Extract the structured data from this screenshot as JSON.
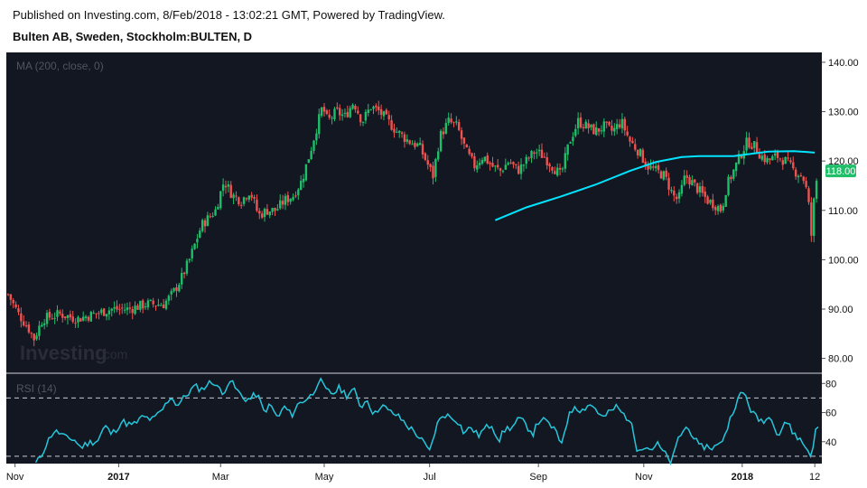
{
  "header": {
    "published": "Published on Investing.com, 8/Feb/2018 - 13:02:21 GMT, Powered by TradingView.",
    "title": "Bulten AB, Sweden, Stockholm:BULTEN, D"
  },
  "watermark": {
    "brand": "Investing",
    "suffix": ".com"
  },
  "colors": {
    "background": "#131722",
    "up": "#26a69a",
    "up_candle": "#1fbf6a",
    "down_candle": "#ef5350",
    "ma": "#00e5ff",
    "rsi": "#26c6da",
    "price_tag": "#1fbf6a"
  },
  "chart_data": [
    {
      "type": "candlestick",
      "title": "",
      "study_label": "MA (200, close, 0)",
      "ylim": [
        77,
        142
      ],
      "y_ticks": [
        "140.00",
        "130.00",
        "120.00",
        "110.00",
        "100.00",
        "90.00",
        "80.00"
      ],
      "y_tick_values": [
        140,
        130,
        120,
        110,
        100,
        90,
        80
      ],
      "last_price_label": "118.00",
      "last_price": 118,
      "x_ticks": [
        {
          "label": "Nov",
          "bold": false
        },
        {
          "label": "2017",
          "bold": true
        },
        {
          "label": "Mar",
          "bold": false
        },
        {
          "label": "May",
          "bold": false
        },
        {
          "label": "Jul",
          "bold": false
        },
        {
          "label": "Sep",
          "bold": false
        },
        {
          "label": "Nov",
          "bold": false
        },
        {
          "label": "2018",
          "bold": true
        },
        {
          "label": "12",
          "bold": false
        }
      ],
      "x_tick_days": [
        4,
        64,
        123,
        183,
        244,
        307,
        368,
        425,
        467
      ],
      "close_keypoints": [
        [
          0,
          93
        ],
        [
          6,
          89
        ],
        [
          12,
          86
        ],
        [
          15,
          84
        ],
        [
          20,
          88
        ],
        [
          30,
          89
        ],
        [
          40,
          88
        ],
        [
          50,
          89
        ],
        [
          60,
          90
        ],
        [
          70,
          90
        ],
        [
          80,
          91
        ],
        [
          90,
          91
        ],
        [
          95,
          93
        ],
        [
          100,
          96
        ],
        [
          105,
          100
        ],
        [
          112,
          107
        ],
        [
          120,
          110
        ],
        [
          125,
          116
        ],
        [
          130,
          113
        ],
        [
          135,
          112
        ],
        [
          140,
          114
        ],
        [
          145,
          109
        ],
        [
          150,
          110
        ],
        [
          155,
          110
        ],
        [
          160,
          112
        ],
        [
          165,
          113
        ],
        [
          170,
          116
        ],
        [
          175,
          122
        ],
        [
          178,
          126
        ],
        [
          182,
          131
        ],
        [
          185,
          128
        ],
        [
          190,
          130
        ],
        [
          195,
          129
        ],
        [
          200,
          132
        ],
        [
          205,
          128
        ],
        [
          210,
          131
        ],
        [
          215,
          130
        ],
        [
          220,
          128
        ],
        [
          225,
          126
        ],
        [
          232,
          124
        ],
        [
          238,
          123
        ],
        [
          242,
          120
        ],
        [
          246,
          117
        ],
        [
          250,
          125
        ],
        [
          255,
          128
        ],
        [
          260,
          127
        ],
        [
          265,
          122
        ],
        [
          270,
          119
        ],
        [
          275,
          121
        ],
        [
          280,
          119
        ],
        [
          285,
          118
        ],
        [
          290,
          120
        ],
        [
          295,
          118
        ],
        [
          300,
          120
        ],
        [
          305,
          122
        ],
        [
          310,
          121
        ],
        [
          315,
          119
        ],
        [
          320,
          117
        ],
        [
          325,
          124
        ],
        [
          330,
          128
        ],
        [
          335,
          127
        ],
        [
          340,
          126
        ],
        [
          345,
          127
        ],
        [
          350,
          126
        ],
        [
          355,
          128
        ],
        [
          360,
          124
        ],
        [
          365,
          122
        ],
        [
          370,
          119
        ],
        [
          375,
          118
        ],
        [
          380,
          117
        ],
        [
          385,
          113
        ],
        [
          388,
          112
        ],
        [
          392,
          117
        ],
        [
          395,
          116
        ],
        [
          400,
          114
        ],
        [
          405,
          112
        ],
        [
          410,
          111
        ],
        [
          413,
          110
        ],
        [
          416,
          115
        ],
        [
          420,
          118
        ],
        [
          425,
          122
        ],
        [
          428,
          124
        ],
        [
          432,
          123
        ],
        [
          436,
          121
        ],
        [
          440,
          120
        ],
        [
          445,
          121
        ],
        [
          450,
          120
        ],
        [
          455,
          118
        ],
        [
          460,
          117
        ],
        [
          463,
          113
        ],
        [
          465,
          105
        ],
        [
          467,
          114
        ],
        [
          469,
          118
        ]
      ],
      "ma_200": [
        [
          282,
          108
        ],
        [
          300,
          110.6
        ],
        [
          320,
          112.8
        ],
        [
          340,
          115.2
        ],
        [
          360,
          118.0
        ],
        [
          375,
          119.8
        ],
        [
          390,
          120.8
        ],
        [
          400,
          121.0
        ],
        [
          420,
          121.0
        ],
        [
          440,
          121.9
        ],
        [
          455,
          122.0
        ],
        [
          467,
          121.7
        ]
      ]
    },
    {
      "type": "line",
      "title": "",
      "study_label": "RSI (14)",
      "ylim": [
        25,
        87
      ],
      "y_ticks": [
        "80",
        "60",
        "40"
      ],
      "y_tick_values": [
        80,
        60,
        40
      ],
      "bands": [
        70,
        30
      ],
      "values_keypoints": [
        [
          16,
          25
        ],
        [
          18,
          28
        ],
        [
          22,
          38
        ],
        [
          26,
          47
        ],
        [
          30,
          46
        ],
        [
          34,
          42
        ],
        [
          38,
          42
        ],
        [
          42,
          36
        ],
        [
          46,
          39
        ],
        [
          52,
          41
        ],
        [
          56,
          51
        ],
        [
          60,
          45
        ],
        [
          66,
          54
        ],
        [
          72,
          51
        ],
        [
          78,
          57
        ],
        [
          84,
          55
        ],
        [
          90,
          63
        ],
        [
          94,
          71
        ],
        [
          98,
          65
        ],
        [
          104,
          73
        ],
        [
          108,
          78
        ],
        [
          112,
          76
        ],
        [
          116,
          80
        ],
        [
          120,
          81
        ],
        [
          124,
          72
        ],
        [
          128,
          83
        ],
        [
          132,
          76
        ],
        [
          136,
          70
        ],
        [
          140,
          69
        ],
        [
          144,
          73
        ],
        [
          148,
          61
        ],
        [
          152,
          65
        ],
        [
          156,
          56
        ],
        [
          160,
          64
        ],
        [
          164,
          58
        ],
        [
          168,
          66
        ],
        [
          172,
          69
        ],
        [
          176,
          72
        ],
        [
          180,
          83
        ],
        [
          184,
          75
        ],
        [
          188,
          73
        ],
        [
          192,
          77
        ],
        [
          196,
          72
        ],
        [
          200,
          76
        ],
        [
          204,
          64
        ],
        [
          208,
          69
        ],
        [
          212,
          58
        ],
        [
          216,
          66
        ],
        [
          220,
          61
        ],
        [
          224,
          59
        ],
        [
          228,
          55
        ],
        [
          232,
          50
        ],
        [
          236,
          46
        ],
        [
          240,
          40
        ],
        [
          244,
          33
        ],
        [
          248,
          51
        ],
        [
          252,
          59
        ],
        [
          256,
          57
        ],
        [
          260,
          55
        ],
        [
          264,
          46
        ],
        [
          268,
          50
        ],
        [
          272,
          44
        ],
        [
          276,
          49
        ],
        [
          280,
          52
        ],
        [
          284,
          41
        ],
        [
          288,
          49
        ],
        [
          292,
          50
        ],
        [
          296,
          56
        ],
        [
          300,
          51
        ],
        [
          304,
          46
        ],
        [
          308,
          56
        ],
        [
          312,
          53
        ],
        [
          316,
          49
        ],
        [
          320,
          38
        ],
        [
          324,
          56
        ],
        [
          328,
          65
        ],
        [
          332,
          61
        ],
        [
          336,
          66
        ],
        [
          340,
          63
        ],
        [
          344,
          56
        ],
        [
          348,
          60
        ],
        [
          352,
          64
        ],
        [
          356,
          59
        ],
        [
          360,
          55
        ],
        [
          364,
          36
        ],
        [
          368,
          37
        ],
        [
          372,
          35
        ],
        [
          376,
          38
        ],
        [
          380,
          32
        ],
        [
          384,
          25
        ],
        [
          388,
          42
        ],
        [
          392,
          50
        ],
        [
          396,
          46
        ],
        [
          400,
          36
        ],
        [
          404,
          37
        ],
        [
          408,
          36
        ],
        [
          412,
          38
        ],
        [
          416,
          48
        ],
        [
          420,
          63
        ],
        [
          424,
          72
        ],
        [
          426,
          74
        ],
        [
          430,
          62
        ],
        [
          434,
          55
        ],
        [
          438,
          55
        ],
        [
          442,
          57
        ],
        [
          446,
          44
        ],
        [
          450,
          55
        ],
        [
          454,
          47
        ],
        [
          458,
          42
        ],
        [
          462,
          36
        ],
        [
          465,
          30
        ],
        [
          467,
          46
        ],
        [
          469,
          50
        ]
      ]
    }
  ]
}
